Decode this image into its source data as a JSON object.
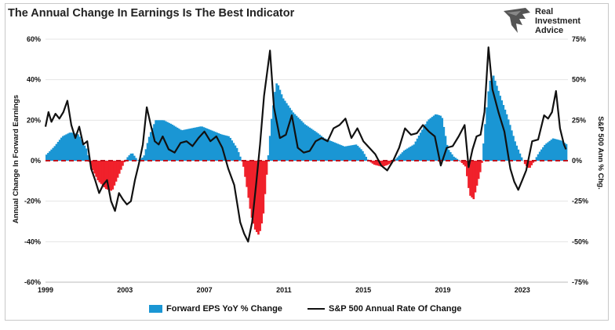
{
  "title": "The Annual Change In Earnings Is The Best Indicator",
  "logo": {
    "line1": "Real",
    "line2": "Investment",
    "line3": "Advice"
  },
  "colors": {
    "bars_positive": "#1a96d4",
    "bars_negative": "#f0212b",
    "line": "#111111",
    "zero_line": "#c0121d"
  },
  "chart_data": {
    "type": "bar",
    "title": "The Annual Change In Earnings Is The Best Indicator",
    "ylabel": "Annual Change In Forward Earnings",
    "y2label": "S&P 500  Ann % Chg.",
    "xlim": [
      1999,
      2025.3
    ],
    "ylim": [
      -60,
      60
    ],
    "y2lim": [
      -75,
      75
    ],
    "x_ticks": [
      "1999",
      "2003",
      "2007",
      "2011",
      "2015",
      "2019",
      "2023"
    ],
    "y_ticks": [
      "60%",
      "40%",
      "20%",
      "0%",
      "-20%",
      "-40%",
      "-60%"
    ],
    "y2_ticks": [
      "75%",
      "50%",
      "25%",
      "0%",
      "-25%",
      "-50%",
      "-75%"
    ],
    "grid": "horizontal",
    "legend_position": "bottom",
    "series": [
      {
        "name": "Forward EPS YoY % Change",
        "type": "bar",
        "axis": "left",
        "points": [
          [
            1999,
            3
          ],
          [
            1999.4,
            7
          ],
          [
            1999.8,
            12
          ],
          [
            2000.2,
            14
          ],
          [
            2000.6,
            13
          ],
          [
            2001,
            6
          ],
          [
            2001.2,
            -2
          ],
          [
            2001.6,
            -10
          ],
          [
            2002,
            -14
          ],
          [
            2002.3,
            -15
          ],
          [
            2002.6,
            -8
          ],
          [
            2002.9,
            -1
          ],
          [
            2003.1,
            2
          ],
          [
            2003.3,
            4
          ],
          [
            2003.6,
            0
          ],
          [
            2003.9,
            2
          ],
          [
            2004.2,
            13
          ],
          [
            2004.5,
            20
          ],
          [
            2004.9,
            20
          ],
          [
            2005.3,
            18
          ],
          [
            2005.8,
            15
          ],
          [
            2006.3,
            16
          ],
          [
            2006.8,
            17
          ],
          [
            2007.3,
            15
          ],
          [
            2007.8,
            13
          ],
          [
            2008.2,
            12
          ],
          [
            2008.6,
            6
          ],
          [
            2008.9,
            -2
          ],
          [
            2009.1,
            -14
          ],
          [
            2009.3,
            -27
          ],
          [
            2009.5,
            -34
          ],
          [
            2009.7,
            -37
          ],
          [
            2009.9,
            -28
          ],
          [
            2010.1,
            -5
          ],
          [
            2010.3,
            18
          ],
          [
            2010.5,
            34
          ],
          [
            2010.6,
            39
          ],
          [
            2010.9,
            31
          ],
          [
            2011.4,
            24
          ],
          [
            2012,
            18
          ],
          [
            2012.6,
            14
          ],
          [
            2013,
            11
          ],
          [
            2013.5,
            9
          ],
          [
            2014,
            7
          ],
          [
            2014.6,
            8
          ],
          [
            2014.9,
            5
          ],
          [
            2015.2,
            0
          ],
          [
            2015.5,
            -2
          ],
          [
            2015.9,
            -3
          ],
          [
            2016.2,
            -2
          ],
          [
            2016.6,
            1
          ],
          [
            2017,
            5
          ],
          [
            2017.5,
            8
          ],
          [
            2017.9,
            15
          ],
          [
            2018.2,
            20
          ],
          [
            2018.6,
            23
          ],
          [
            2018.9,
            22
          ],
          [
            2019.2,
            6
          ],
          [
            2019.5,
            2
          ],
          [
            2019.8,
            0
          ],
          [
            2020.1,
            -3
          ],
          [
            2020.3,
            -17
          ],
          [
            2020.5,
            -19
          ],
          [
            2020.7,
            -11
          ],
          [
            2020.9,
            -3
          ],
          [
            2021.1,
            20
          ],
          [
            2021.3,
            39
          ],
          [
            2021.5,
            42
          ],
          [
            2021.8,
            33
          ],
          [
            2022.2,
            22
          ],
          [
            2022.6,
            9
          ],
          [
            2022.9,
            2
          ],
          [
            2023.1,
            -2
          ],
          [
            2023.3,
            -4
          ],
          [
            2023.5,
            -1
          ],
          [
            2023.8,
            4
          ],
          [
            2024.1,
            8
          ],
          [
            2024.5,
            11
          ],
          [
            2024.9,
            10
          ],
          [
            2025.2,
            8
          ]
        ]
      },
      {
        "name": "S&P 500 Annual Rate Of Change",
        "type": "line",
        "axis": "right",
        "points": [
          [
            1999,
            21
          ],
          [
            1999.15,
            30
          ],
          [
            1999.3,
            24
          ],
          [
            1999.5,
            29
          ],
          [
            1999.7,
            26
          ],
          [
            1999.9,
            30
          ],
          [
            2000.1,
            37
          ],
          [
            2000.3,
            22
          ],
          [
            2000.5,
            14
          ],
          [
            2000.7,
            21
          ],
          [
            2000.9,
            10
          ],
          [
            2001.1,
            12
          ],
          [
            2001.3,
            -5
          ],
          [
            2001.5,
            -12
          ],
          [
            2001.7,
            -20
          ],
          [
            2001.9,
            -15
          ],
          [
            2002.1,
            -12
          ],
          [
            2002.3,
            -25
          ],
          [
            2002.5,
            -31
          ],
          [
            2002.7,
            -20
          ],
          [
            2002.9,
            -24
          ],
          [
            2003.1,
            -27
          ],
          [
            2003.3,
            -25
          ],
          [
            2003.5,
            -12
          ],
          [
            2003.7,
            -2
          ],
          [
            2003.9,
            10
          ],
          [
            2004.1,
            33
          ],
          [
            2004.3,
            22
          ],
          [
            2004.5,
            12
          ],
          [
            2004.7,
            10
          ],
          [
            2004.9,
            15
          ],
          [
            2005.2,
            7
          ],
          [
            2005.5,
            5
          ],
          [
            2005.8,
            11
          ],
          [
            2006.1,
            12
          ],
          [
            2006.4,
            9
          ],
          [
            2006.7,
            14
          ],
          [
            2007,
            18
          ],
          [
            2007.3,
            12
          ],
          [
            2007.6,
            15
          ],
          [
            2007.9,
            8
          ],
          [
            2008.2,
            -5
          ],
          [
            2008.5,
            -15
          ],
          [
            2008.8,
            -38
          ],
          [
            2009,
            -45
          ],
          [
            2009.2,
            -50
          ],
          [
            2009.4,
            -38
          ],
          [
            2009.6,
            -15
          ],
          [
            2009.8,
            10
          ],
          [
            2010,
            40
          ],
          [
            2010.3,
            68
          ],
          [
            2010.5,
            33
          ],
          [
            2010.8,
            14
          ],
          [
            2011.1,
            16
          ],
          [
            2011.4,
            28
          ],
          [
            2011.7,
            8
          ],
          [
            2012,
            5
          ],
          [
            2012.3,
            6
          ],
          [
            2012.6,
            12
          ],
          [
            2012.9,
            14
          ],
          [
            2013.2,
            12
          ],
          [
            2013.5,
            20
          ],
          [
            2013.8,
            22
          ],
          [
            2014.1,
            26
          ],
          [
            2014.4,
            14
          ],
          [
            2014.7,
            20
          ],
          [
            2015,
            12
          ],
          [
            2015.3,
            8
          ],
          [
            2015.6,
            4
          ],
          [
            2015.9,
            -3
          ],
          [
            2016.2,
            -6
          ],
          [
            2016.5,
            0
          ],
          [
            2016.8,
            8
          ],
          [
            2017.1,
            20
          ],
          [
            2017.4,
            16
          ],
          [
            2017.7,
            17
          ],
          [
            2018,
            22
          ],
          [
            2018.3,
            18
          ],
          [
            2018.6,
            15
          ],
          [
            2018.9,
            -3
          ],
          [
            2019.2,
            8
          ],
          [
            2019.5,
            9
          ],
          [
            2019.8,
            15
          ],
          [
            2020.1,
            22
          ],
          [
            2020.3,
            -4
          ],
          [
            2020.5,
            7
          ],
          [
            2020.7,
            15
          ],
          [
            2020.9,
            16
          ],
          [
            2021.1,
            30
          ],
          [
            2021.3,
            70
          ],
          [
            2021.5,
            44
          ],
          [
            2021.8,
            30
          ],
          [
            2022.1,
            18
          ],
          [
            2022.4,
            -5
          ],
          [
            2022.6,
            -13
          ],
          [
            2022.8,
            -18
          ],
          [
            2023,
            -12
          ],
          [
            2023.2,
            -6
          ],
          [
            2023.5,
            12
          ],
          [
            2023.8,
            13
          ],
          [
            2024.1,
            28
          ],
          [
            2024.3,
            26
          ],
          [
            2024.5,
            30
          ],
          [
            2024.7,
            43
          ],
          [
            2024.9,
            20
          ],
          [
            2025.1,
            10
          ],
          [
            2025.2,
            7
          ]
        ]
      }
    ]
  }
}
